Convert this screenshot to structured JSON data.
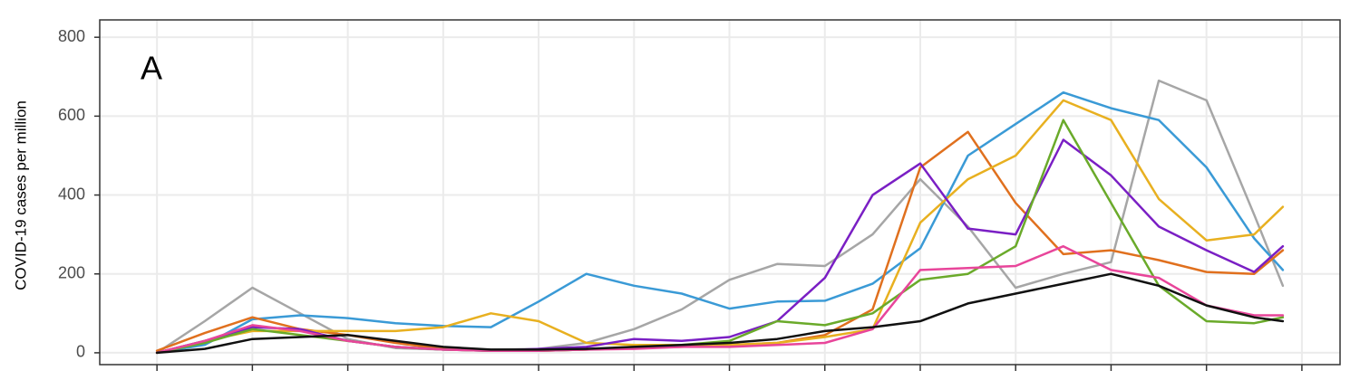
{
  "chart_data": {
    "type": "line",
    "title": "A",
    "ylabel": "COVID-19 cases per million",
    "x": [
      0,
      0.5,
      1,
      1.5,
      2,
      2.5,
      3,
      3.5,
      4,
      4.5,
      5,
      5.5,
      6,
      6.5,
      7,
      7.5,
      8,
      8.5,
      9,
      9.5,
      10,
      10.5,
      11,
      11.5,
      11.8
    ],
    "xlim": [
      -0.6,
      12.4
    ],
    "xticks": [
      0,
      1,
      2,
      3,
      4,
      5,
      6,
      7,
      8,
      9,
      10,
      11,
      12
    ],
    "ylim": [
      -30,
      844
    ],
    "yticks": [
      0,
      200,
      400,
      600,
      800
    ],
    "grid": true,
    "series": [
      {
        "color": "#a6a6a6",
        "values": [
          0,
          80,
          165,
          100,
          35,
          12,
          8,
          8,
          10,
          25,
          60,
          110,
          185,
          225,
          220,
          300,
          440,
          320,
          165,
          200,
          230,
          690,
          640,
          350,
          170
        ]
      },
      {
        "color": "#3a9ad6",
        "values": [
          0,
          20,
          85,
          95,
          88,
          75,
          68,
          65,
          130,
          200,
          170,
          150,
          112,
          130,
          132,
          175,
          265,
          500,
          580,
          660,
          620,
          590,
          470,
          290,
          210
        ]
      },
      {
        "color": "#e0701e",
        "values": [
          5,
          50,
          90,
          60,
          45,
          25,
          10,
          5,
          5,
          8,
          12,
          15,
          20,
          25,
          45,
          110,
          470,
          560,
          380,
          250,
          260,
          235,
          205,
          200,
          260
        ]
      },
      {
        "color": "#e8b020",
        "values": [
          0,
          30,
          55,
          55,
          55,
          55,
          65,
          100,
          80,
          25,
          20,
          20,
          20,
          25,
          40,
          60,
          330,
          440,
          500,
          640,
          590,
          390,
          285,
          300,
          370
        ]
      },
      {
        "color": "#7a1fc4",
        "values": [
          0,
          30,
          65,
          60,
          30,
          15,
          8,
          5,
          10,
          15,
          35,
          30,
          40,
          80,
          190,
          400,
          480,
          315,
          300,
          540,
          450,
          320,
          260,
          205,
          270
        ]
      },
      {
        "color": "#6aaa2a",
        "values": [
          0,
          25,
          60,
          45,
          30,
          15,
          8,
          5,
          5,
          8,
          15,
          20,
          30,
          80,
          70,
          100,
          185,
          200,
          270,
          590,
          380,
          170,
          80,
          75,
          90
        ]
      },
      {
        "color": "#e8459a",
        "values": [
          0,
          30,
          70,
          55,
          30,
          15,
          8,
          5,
          5,
          8,
          10,
          15,
          15,
          20,
          25,
          60,
          210,
          215,
          220,
          270,
          210,
          190,
          120,
          95,
          95
        ]
      },
      {
        "color": "#111111",
        "values": [
          0,
          10,
          35,
          40,
          45,
          30,
          15,
          8,
          8,
          10,
          15,
          20,
          25,
          35,
          55,
          65,
          80,
          125,
          150,
          175,
          200,
          170,
          120,
          90,
          80
        ]
      }
    ]
  }
}
